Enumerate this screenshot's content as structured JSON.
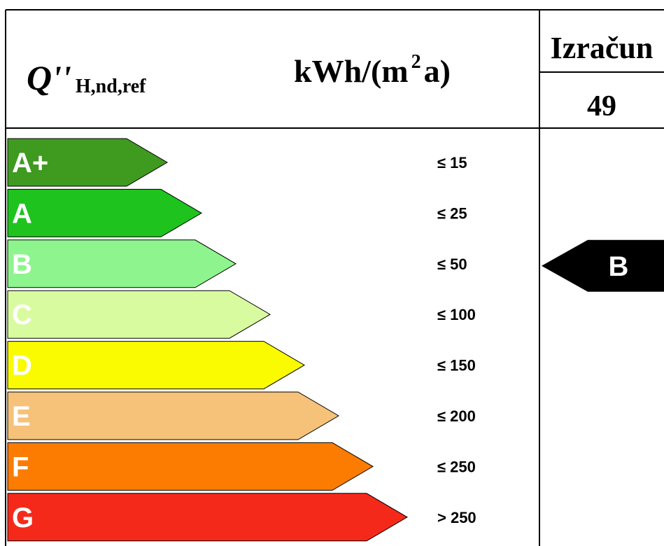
{
  "header": {
    "quantity_symbol": "Q''",
    "quantity_subscript": "H,nd,ref",
    "unit_prefix": "kWh/(m",
    "unit_exponent": "2",
    "unit_suffix": "a)",
    "result_title": "Izračun",
    "result_value": "49"
  },
  "classes": [
    {
      "letter": "A+",
      "threshold": "≤ 15",
      "color": "#3f9a20"
    },
    {
      "letter": "A",
      "threshold": "≤ 25",
      "color": "#1ec31e"
    },
    {
      "letter": "B",
      "threshold": "≤ 50",
      "color": "#8ef58e"
    },
    {
      "letter": "C",
      "threshold": "≤ 100",
      "color": "#d9fba0"
    },
    {
      "letter": "D",
      "threshold": "≤ 150",
      "color": "#fbfb00"
    },
    {
      "letter": "E",
      "threshold": "≤ 200",
      "color": "#f6c27a"
    },
    {
      "letter": "F",
      "threshold": "≤ 250",
      "color": "#fb7c00"
    },
    {
      "letter": "G",
      "threshold": "> 250",
      "color": "#f5291a"
    }
  ],
  "result": {
    "class_letter": "B",
    "class_index": 2,
    "color": "#000000"
  }
}
